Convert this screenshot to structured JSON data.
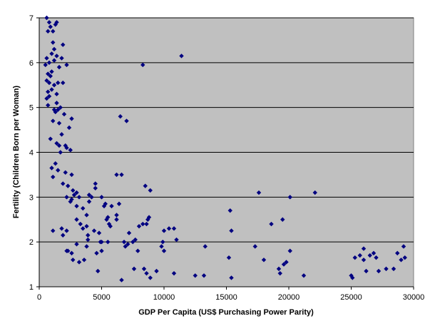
{
  "chart_data": {
    "type": "scatter",
    "title": "",
    "xlabel": "GDP Per Capita (US$ Purchasing Power Parity)",
    "ylabel": "Fertility (Children Born per Woman)",
    "xlim": [
      0,
      30000
    ],
    "ylim": [
      1,
      7
    ],
    "x_ticks": [
      "0",
      "5000",
      "10000",
      "15000",
      "20000",
      "25000",
      "30000"
    ],
    "y_ticks": [
      "1",
      "2",
      "3",
      "4",
      "5",
      "6",
      "7"
    ],
    "grid": "horizontal",
    "legend": "none",
    "plot_background": "#c0c0c0",
    "marker_color": "#000080",
    "points": [
      [
        600,
        7.0
      ],
      [
        800,
        6.9
      ],
      [
        900,
        6.8
      ],
      [
        700,
        6.7
      ],
      [
        1100,
        6.7
      ],
      [
        1300,
        6.85
      ],
      [
        1400,
        6.9
      ],
      [
        1100,
        6.45
      ],
      [
        1200,
        6.3
      ],
      [
        1900,
        6.4
      ],
      [
        1000,
        6.2
      ],
      [
        600,
        6.1
      ],
      [
        1400,
        6.15
      ],
      [
        1800,
        6.1
      ],
      [
        500,
        5.95
      ],
      [
        800,
        6.0
      ],
      [
        1200,
        6.05
      ],
      [
        1600,
        5.9
      ],
      [
        2200,
        5.95
      ],
      [
        1000,
        5.8
      ],
      [
        700,
        5.75
      ],
      [
        900,
        5.7
      ],
      [
        600,
        5.6
      ],
      [
        800,
        5.55
      ],
      [
        1200,
        5.5
      ],
      [
        1500,
        5.55
      ],
      [
        1900,
        5.55
      ],
      [
        700,
        5.35
      ],
      [
        1000,
        5.4
      ],
      [
        1400,
        5.3
      ],
      [
        600,
        5.2
      ],
      [
        800,
        5.25
      ],
      [
        700,
        5.05
      ],
      [
        1400,
        5.1
      ],
      [
        1700,
        5.0
      ],
      [
        1200,
        4.95
      ],
      [
        1500,
        4.95
      ],
      [
        2000,
        4.85
      ],
      [
        1300,
        4.9
      ],
      [
        1100,
        4.7
      ],
      [
        2600,
        4.75
      ],
      [
        1600,
        4.65
      ],
      [
        2400,
        4.55
      ],
      [
        1800,
        4.4
      ],
      [
        1400,
        4.2
      ],
      [
        2100,
        4.15
      ],
      [
        1600,
        4.15
      ],
      [
        900,
        4.3
      ],
      [
        2200,
        4.1
      ],
      [
        1700,
        4.0
      ],
      [
        2500,
        4.05
      ],
      [
        1300,
        3.75
      ],
      [
        1000,
        3.65
      ],
      [
        1500,
        3.6
      ],
      [
        2100,
        3.55
      ],
      [
        2600,
        3.5
      ],
      [
        1100,
        3.45
      ],
      [
        1900,
        3.3
      ],
      [
        2300,
        3.25
      ],
      [
        2700,
        3.15
      ],
      [
        2200,
        3.0
      ],
      [
        2600,
        2.95
      ],
      [
        3000,
        3.1
      ],
      [
        2800,
        3.05
      ],
      [
        3200,
        3.0
      ],
      [
        2500,
        2.9
      ],
      [
        3000,
        2.8
      ],
      [
        3500,
        2.75
      ],
      [
        4000,
        3.05
      ],
      [
        4000,
        2.9
      ],
      [
        4200,
        3.0
      ],
      [
        3800,
        2.6
      ],
      [
        4500,
        3.2
      ],
      [
        4500,
        3.3
      ],
      [
        5000,
        3.0
      ],
      [
        5300,
        2.85
      ],
      [
        5400,
        2.5
      ],
      [
        5500,
        2.55
      ],
      [
        5600,
        2.4
      ],
      [
        5200,
        2.8
      ],
      [
        4800,
        2.2
      ],
      [
        3000,
        2.5
      ],
      [
        3300,
        2.4
      ],
      [
        3800,
        2.35
      ],
      [
        3500,
        2.3
      ],
      [
        3900,
        2.15
      ],
      [
        3900,
        2.05
      ],
      [
        4400,
        2.25
      ],
      [
        4900,
        2.0
      ],
      [
        1100,
        2.25
      ],
      [
        1800,
        2.3
      ],
      [
        2200,
        2.25
      ],
      [
        1900,
        2.15
      ],
      [
        2300,
        1.8
      ],
      [
        2600,
        1.75
      ],
      [
        2700,
        1.6
      ],
      [
        3000,
        1.95
      ],
      [
        3200,
        1.55
      ],
      [
        3600,
        1.6
      ],
      [
        3800,
        1.9
      ],
      [
        2200,
        1.8
      ],
      [
        4600,
        1.75
      ],
      [
        4700,
        1.35
      ],
      [
        5000,
        1.8
      ],
      [
        5000,
        2.0
      ],
      [
        5500,
        2.0
      ],
      [
        5700,
        2.35
      ],
      [
        5800,
        2.8
      ],
      [
        6200,
        2.5
      ],
      [
        6200,
        2.6
      ],
      [
        6400,
        2.85
      ],
      [
        6200,
        3.5
      ],
      [
        6600,
        3.5
      ],
      [
        6500,
        4.8
      ],
      [
        7000,
        4.7
      ],
      [
        6800,
        2.0
      ],
      [
        6900,
        1.9
      ],
      [
        7100,
        1.95
      ],
      [
        7200,
        2.2
      ],
      [
        7500,
        2.0
      ],
      [
        7700,
        2.05
      ],
      [
        7900,
        1.8
      ],
      [
        8000,
        2.35
      ],
      [
        8300,
        2.4
      ],
      [
        8600,
        2.4
      ],
      [
        8700,
        2.5
      ],
      [
        8800,
        2.55
      ],
      [
        7600,
        1.4
      ],
      [
        8400,
        1.4
      ],
      [
        8600,
        1.3
      ],
      [
        8900,
        1.2
      ],
      [
        9400,
        1.35
      ],
      [
        9800,
        1.9
      ],
      [
        10000,
        2.25
      ],
      [
        9900,
        2.0
      ],
      [
        10000,
        1.8
      ],
      [
        10400,
        2.3
      ],
      [
        10800,
        2.3
      ],
      [
        11000,
        2.05
      ],
      [
        10800,
        1.3
      ],
      [
        8300,
        5.95
      ],
      [
        8500,
        3.25
      ],
      [
        8900,
        3.15
      ],
      [
        11400,
        6.15
      ],
      [
        6600,
        1.15
      ],
      [
        12500,
        1.25
      ],
      [
        13200,
        1.25
      ],
      [
        13300,
        1.9
      ],
      [
        15200,
        1.65
      ],
      [
        15400,
        1.2
      ],
      [
        15300,
        2.7
      ],
      [
        15400,
        2.25
      ],
      [
        17300,
        1.9
      ],
      [
        17600,
        3.1
      ],
      [
        18000,
        1.6
      ],
      [
        18600,
        2.4
      ],
      [
        19200,
        1.4
      ],
      [
        19300,
        1.3
      ],
      [
        19600,
        1.5
      ],
      [
        19800,
        1.55
      ],
      [
        19500,
        2.5
      ],
      [
        20100,
        1.8
      ],
      [
        20100,
        3.0
      ],
      [
        21200,
        1.25
      ],
      [
        22100,
        3.1
      ],
      [
        25000,
        1.25
      ],
      [
        25100,
        1.2
      ],
      [
        25300,
        1.65
      ],
      [
        25700,
        1.7
      ],
      [
        26000,
        1.85
      ],
      [
        26000,
        1.6
      ],
      [
        26200,
        1.35
      ],
      [
        26500,
        1.7
      ],
      [
        26800,
        1.75
      ],
      [
        27000,
        1.65
      ],
      [
        27200,
        1.35
      ],
      [
        27800,
        1.4
      ],
      [
        28400,
        1.4
      ],
      [
        28700,
        1.75
      ],
      [
        29000,
        1.6
      ],
      [
        29200,
        1.9
      ],
      [
        29300,
        1.65
      ]
    ]
  }
}
